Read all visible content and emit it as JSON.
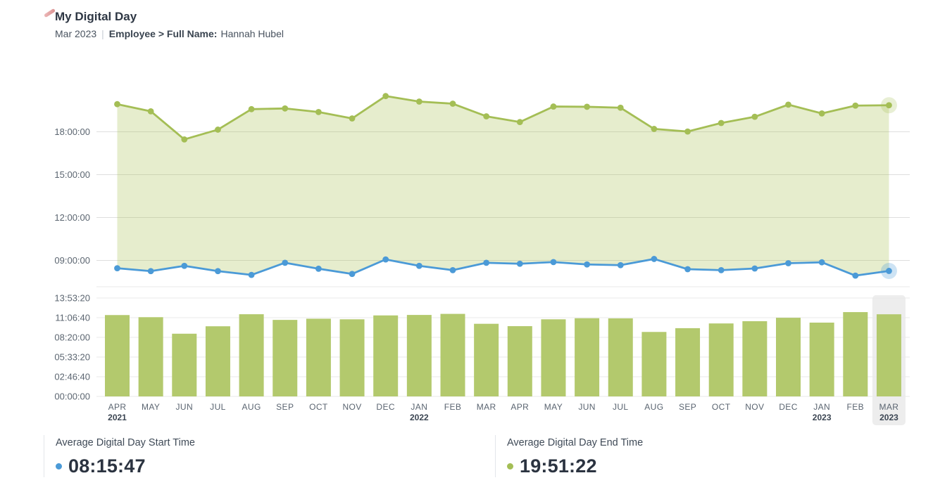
{
  "header": {
    "title": "My Digital Day",
    "period": "Mar 2023",
    "divider": "|",
    "filter_label": "Employee > Full Name:",
    "filter_value": "Hannah Hubel"
  },
  "colors": {
    "start_line": "#4b9ad7",
    "end_line": "#a4be55",
    "area_fill": "rgba(166,190,77,0.28)",
    "bar": "#b3c96d",
    "grid": "#dedede",
    "grid_light": "#e9e9e9",
    "axis_text": "#5b6570",
    "month_text": "#5a6470",
    "year_text": "#3b4552",
    "highlight_band": "#ededed",
    "start_halo": "rgba(75,154,215,0.28)",
    "end_halo": "rgba(164,190,85,0.25)"
  },
  "chart_data": [
    {
      "type": "area",
      "title": "Digital day start and end time by month",
      "categories": [
        "APR 2021",
        "MAY 2021",
        "JUN 2021",
        "JUL 2021",
        "AUG 2021",
        "SEP 2021",
        "OCT 2021",
        "NOV 2021",
        "DEC 2021",
        "JAN 2022",
        "FEB 2022",
        "MAR 2022",
        "APR 2022",
        "MAY 2022",
        "JUN 2022",
        "JUL 2022",
        "AUG 2022",
        "SEP 2022",
        "OCT 2022",
        "NOV 2022",
        "DEC 2022",
        "JAN 2023",
        "FEB 2023",
        "MAR 2023"
      ],
      "months": [
        "APR",
        "MAY",
        "JUN",
        "JUL",
        "AUG",
        "SEP",
        "OCT",
        "NOV",
        "DEC",
        "JAN",
        "FEB",
        "MAR",
        "APR",
        "MAY",
        "JUN",
        "JUL",
        "AUG",
        "SEP",
        "OCT",
        "NOV",
        "DEC",
        "JAN",
        "FEB",
        "MAR"
      ],
      "years": [
        "2021",
        "",
        "",
        "",
        "",
        "",
        "",
        "",
        "",
        "2022",
        "",
        "",
        "",
        "",
        "",
        "",
        "",
        "",
        "",
        "",
        "",
        "2023",
        "",
        "2023"
      ],
      "yticks": [
        "18:00:00",
        "15:00:00",
        "12:00:00",
        "09:00:00"
      ],
      "ylim": [
        "07:00:00",
        "22:30:00"
      ],
      "grid": true,
      "legend_position": "bottom",
      "highlighted_category": "MAR 2023",
      "series": [
        {
          "name": "Average Digital Day Start Time",
          "color": "#4b9ad7",
          "values": [
            "08:27",
            "08:15",
            "08:37",
            "08:15",
            "07:59",
            "08:50",
            "08:25",
            "08:03",
            "09:04",
            "08:37",
            "08:19",
            "08:50",
            "08:46",
            "08:53",
            "08:43",
            "08:40",
            "09:06",
            "08:23",
            "08:19",
            "08:26",
            "08:48",
            "08:52",
            "07:56",
            "08:15:47"
          ]
        },
        {
          "name": "Average Digital Day End Time",
          "color": "#a4be55",
          "values": [
            "19:56",
            "19:26",
            "17:28",
            "18:09",
            "19:35",
            "19:38",
            "19:23",
            "18:56",
            "20:30",
            "20:07",
            "19:58",
            "19:05",
            "18:41",
            "19:46",
            "19:45",
            "19:41",
            "18:12",
            "18:01",
            "18:37",
            "19:03",
            "19:54",
            "19:17",
            "19:50",
            "19:51:22"
          ]
        }
      ]
    },
    {
      "type": "bar",
      "title": "Digital day duration by month",
      "categories": [
        "APR 2021",
        "MAY 2021",
        "JUN 2021",
        "JUL 2021",
        "AUG 2021",
        "SEP 2021",
        "OCT 2021",
        "NOV 2021",
        "DEC 2021",
        "JAN 2022",
        "FEB 2022",
        "MAR 2022",
        "APR 2022",
        "MAY 2022",
        "JUN 2022",
        "JUL 2022",
        "AUG 2022",
        "SEP 2022",
        "OCT 2022",
        "NOV 2022",
        "DEC 2022",
        "JAN 2023",
        "FEB 2023",
        "MAR 2023"
      ],
      "yticks": [
        "13:53:20",
        "11:06:40",
        "08:20:00",
        "05:33:20",
        "02:46:40",
        "00:00:00"
      ],
      "ylim": [
        "00:00:00",
        "13:53:20"
      ],
      "grid": true,
      "highlighted_category": "MAR 2023",
      "values": [
        "11:29:00",
        "11:11:00",
        "08:51:00",
        "09:54:00",
        "11:36:00",
        "10:48:00",
        "10:58:00",
        "10:53:00",
        "11:26:00",
        "11:30:00",
        "11:39:00",
        "10:15:00",
        "09:55:00",
        "10:53:00",
        "11:02:00",
        "11:01:00",
        "09:06:00",
        "09:38:00",
        "10:18:00",
        "10:37:00",
        "11:06:00",
        "10:25:00",
        "11:54:00",
        "11:35:35"
      ]
    }
  ],
  "kpis": [
    {
      "label": "Average Digital Day Start Time",
      "value": "08:15:47",
      "color": "#4b9ad7"
    },
    {
      "label": "Average Digital Day End Time",
      "value": "19:51:22",
      "color": "#a4be55"
    }
  ]
}
